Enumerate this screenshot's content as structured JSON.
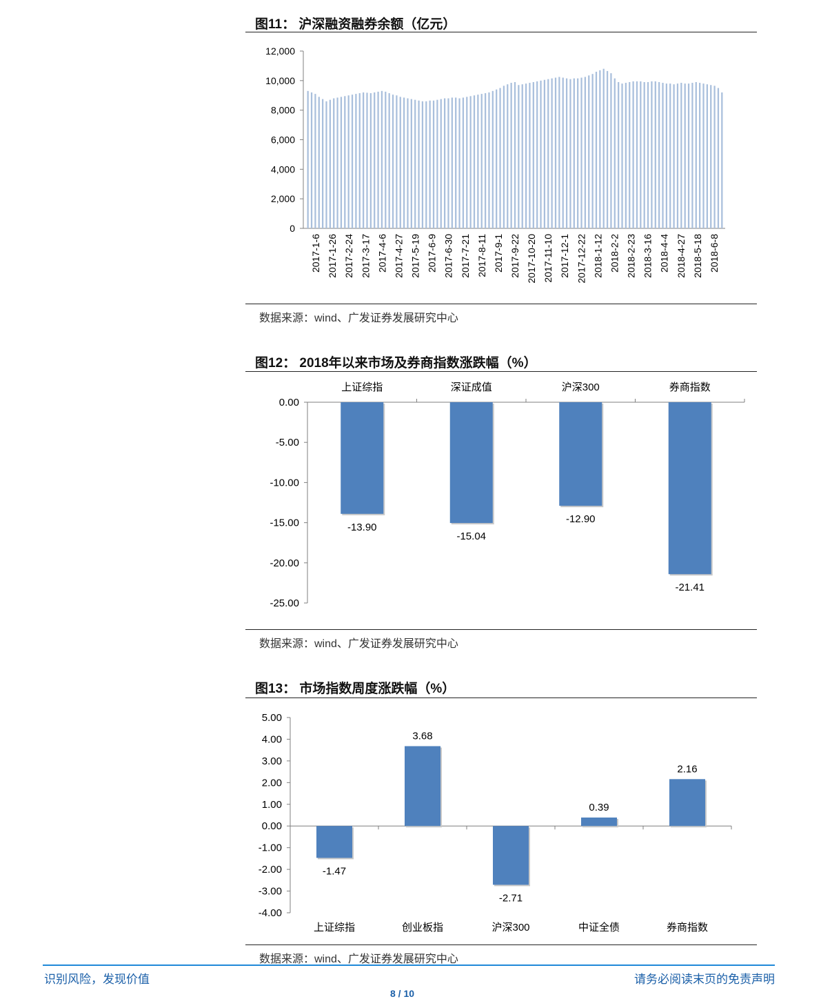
{
  "figures": [
    {
      "title": "图11：  沪深融资融券余额（亿元）",
      "source": "数据来源：wind、广发证券发展研究中心"
    },
    {
      "title": "图12：  2018年以来市场及券商指数涨跌幅（%）",
      "source": "数据来源：wind、广发证券发展研究中心"
    },
    {
      "title": "图13：  市场指数周度涨跌幅（%）",
      "source": "数据来源：wind、广发证券发展研究中心"
    }
  ],
  "chart_data": [
    {
      "type": "bar",
      "title": "沪深融资融券余额（亿元）",
      "ylim": [
        0,
        12000
      ],
      "yticks": [
        "0",
        "2,000",
        "4,000",
        "6,000",
        "8,000",
        "10,000",
        "12,000"
      ],
      "x_labels": [
        "2017-1-6",
        "2017-1-26",
        "2017-2-24",
        "2017-3-17",
        "2017-4-6",
        "2017-4-27",
        "2017-5-19",
        "2017-6-9",
        "2017-6-30",
        "2017-7-21",
        "2017-8-11",
        "2017-9-1",
        "2017-9-22",
        "2017-10-20",
        "2017-11-10",
        "2017-12-1",
        "2017-12-22",
        "2018-1-12",
        "2018-2-2",
        "2018-2-23",
        "2018-3-16",
        "2018-4-4",
        "2018-4-27",
        "2018-5-18",
        "2018-6-8"
      ],
      "values": [
        9300,
        9200,
        9100,
        8900,
        8750,
        8600,
        8700,
        8800,
        8850,
        8900,
        8950,
        9000,
        9050,
        9100,
        9150,
        9200,
        9180,
        9150,
        9200,
        9250,
        9300,
        9250,
        9150,
        9050,
        9000,
        8900,
        8850,
        8800,
        8750,
        8700,
        8650,
        8600,
        8600,
        8650,
        8650,
        8700,
        8750,
        8800,
        8800,
        8850,
        8850,
        8800,
        8850,
        8900,
        8950,
        9000,
        9050,
        9100,
        9150,
        9200,
        9300,
        9400,
        9500,
        9650,
        9750,
        9850,
        9900,
        9700,
        9750,
        9800,
        9850,
        9900,
        9950,
        10000,
        10050,
        10100,
        10150,
        10200,
        10250,
        10200,
        10150,
        10100,
        10150,
        10150,
        10200,
        10250,
        10350,
        10450,
        10600,
        10700,
        10800,
        10650,
        10500,
        10150,
        9900,
        9800,
        9850,
        9900,
        9950,
        9950,
        9950,
        9900,
        9900,
        9950,
        9950,
        9900,
        9850,
        9800,
        9800,
        9750,
        9800,
        9850,
        9800,
        9800,
        9850,
        9900,
        9850,
        9800,
        9750,
        9700,
        9650,
        9500,
        9200
      ]
    },
    {
      "type": "bar",
      "title": "2018年以来市场及券商指数涨跌幅（%）",
      "categories": [
        "上证综指",
        "深证成值",
        "沪深300",
        "券商指数"
      ],
      "values": [
        -13.9,
        -15.04,
        -12.9,
        -21.41
      ],
      "value_labels": [
        "-13.90",
        "-15.04",
        "-12.90",
        "-21.41"
      ],
      "ylim": [
        -25,
        0
      ],
      "yticks": [
        "0.00",
        "-5.00",
        "-10.00",
        "-15.00",
        "-20.00",
        "-25.00"
      ],
      "bar_color": "#4f81bd"
    },
    {
      "type": "bar",
      "title": "市场指数周度涨跌幅（%）",
      "categories": [
        "上证综指",
        "创业板指",
        "沪深300",
        "中证全债",
        "券商指数"
      ],
      "values": [
        -1.47,
        3.68,
        -2.71,
        0.39,
        2.16
      ],
      "value_labels": [
        "-1.47",
        "3.68",
        "-2.71",
        "0.39",
        "2.16"
      ],
      "ylim": [
        -4,
        5
      ],
      "yticks": [
        "5.00",
        "4.00",
        "3.00",
        "2.00",
        "1.00",
        "0.00",
        "-1.00",
        "-2.00",
        "-3.00",
        "-4.00"
      ],
      "bar_color": "#4f81bd"
    }
  ],
  "footer": {
    "left": "识别风险，发现价值",
    "right": "请务必阅读末页的免责声明",
    "page": "8 / 10"
  }
}
